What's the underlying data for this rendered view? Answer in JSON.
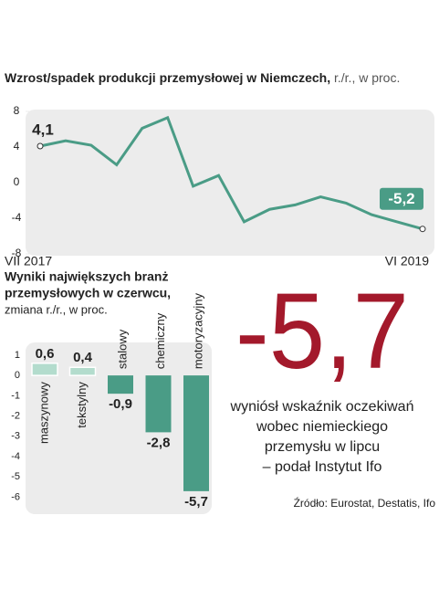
{
  "chart_data": [
    {
      "type": "line",
      "title": "Wzrost/spadek produkcji przemysłowej w Niemczech,",
      "subtitle": "r./r., w proc.",
      "categories": [
        "VII 2017",
        null,
        null,
        null,
        null,
        null,
        null,
        null,
        null,
        null,
        null,
        null,
        null,
        null,
        null,
        "VI 2019"
      ],
      "values": [
        4.1,
        4.7,
        4.2,
        2.0,
        6.1,
        7.3,
        -0.4,
        0.8,
        -4.4,
        -3.0,
        -2.5,
        -1.6,
        -2.3,
        -3.6,
        -4.4,
        -5.2
      ],
      "value_labels": [
        "4,1",
        null,
        null,
        null,
        null,
        null,
        null,
        null,
        null,
        null,
        null,
        null,
        null,
        null,
        null,
        "-5,2"
      ],
      "color": "#4a9c86",
      "ylim": [
        -8,
        8
      ],
      "yticks": [
        8,
        4,
        0,
        -4,
        -8
      ]
    },
    {
      "type": "bar",
      "title": [
        "Wyniki największych branż",
        "przemysłowych  w czerwcu,"
      ],
      "subtitle": "zmiana r./r., w proc.",
      "categories": [
        "maszynowy",
        "tekstylny",
        "stalowy",
        "chemiczny",
        "motoryzacyjny"
      ],
      "values": [
        0.6,
        0.4,
        -0.9,
        -2.8,
        -5.7
      ],
      "value_labels": [
        "0,6",
        "0,4",
        "-0,9",
        "-2,8",
        "-5,7"
      ],
      "color": "#4a9c86",
      "positive_color": "#b3dccd",
      "ylim": [
        -6.2,
        1.4
      ],
      "yticks": [
        1,
        0,
        -1,
        -2,
        -3,
        -4,
        -5,
        -6
      ]
    }
  ],
  "highlight": {
    "value": "-5,7",
    "caption": [
      "wyniósł wskaźnik oczekiwań",
      "wobec niemieckiego",
      "przemysłu w lipcu",
      "– podał Instytut Ifo"
    ]
  },
  "source": "Źródło: Eurostat, Destatis, Ifo"
}
